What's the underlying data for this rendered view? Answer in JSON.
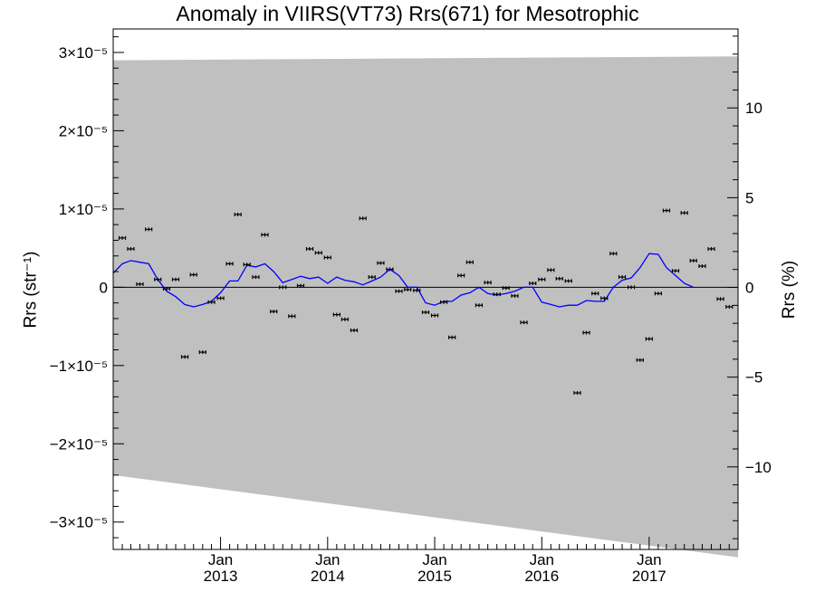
{
  "chart_data": {
    "type": "line",
    "title": "Anomaly in VIIRS(VT73) Rrs(671) for Mesotrophic",
    "ylabel": "Rrs (str⁻¹)",
    "ylabel_right": "Rrs (%)",
    "xlim": [
      "2012-01-01",
      "2017-10-31"
    ],
    "ylim": [
      -3.35e-05,
      3.3e-05
    ],
    "ylim_right": [
      -14.6,
      14.4
    ],
    "x_ticks": [
      {
        "date": "2013-01-01",
        "month": "Jan",
        "year": "2013"
      },
      {
        "date": "2014-01-01",
        "month": "Jan",
        "year": "2014"
      },
      {
        "date": "2015-01-01",
        "month": "Jan",
        "year": "2015"
      },
      {
        "date": "2016-01-01",
        "month": "Jan",
        "year": "2016"
      },
      {
        "date": "2017-01-01",
        "month": "Jan",
        "year": "2017"
      }
    ],
    "y_ticks_left": [
      {
        "value": 3e-05,
        "label": "3×10⁻⁵"
      },
      {
        "value": 2e-05,
        "label": "2×10⁻⁵"
      },
      {
        "value": 1e-05,
        "label": "1×10⁻⁵"
      },
      {
        "value": 0,
        "label": "0"
      },
      {
        "value": -1e-05,
        "label": "−1×10⁻⁵"
      },
      {
        "value": -2e-05,
        "label": "−2×10⁻⁵"
      },
      {
        "value": -3e-05,
        "label": "−3×10⁻⁵"
      }
    ],
    "y_ticks_right": [
      {
        "value": 10,
        "label": "10"
      },
      {
        "value": 5,
        "label": "5"
      },
      {
        "value": 0,
        "label": "0"
      },
      {
        "value": -5,
        "label": "−5"
      },
      {
        "value": -10,
        "label": "−10"
      }
    ],
    "band": {
      "start": {
        "x": "2012-01-01",
        "upper": 2.9e-05,
        "lower": -2.4e-05
      },
      "end": {
        "x": "2017-10-31",
        "upper": 2.95e-05,
        "lower": -3.45e-05
      },
      "color": "#c0c0c0"
    },
    "zero_line": true,
    "series": [
      {
        "type": "line",
        "color": "#0000ff",
        "points": [
          {
            "x": "2012-01-01",
            "y": 1.8e-06
          },
          {
            "x": "2012-02-01",
            "y": 3e-06
          },
          {
            "x": "2012-03-01",
            "y": 3.4e-06
          },
          {
            "x": "2012-04-01",
            "y": 3.2e-06
          },
          {
            "x": "2012-05-01",
            "y": 3e-06
          },
          {
            "x": "2012-06-01",
            "y": 1e-06
          },
          {
            "x": "2012-07-01",
            "y": -5e-07
          },
          {
            "x": "2012-08-01",
            "y": -1.2e-06
          },
          {
            "x": "2012-09-01",
            "y": -2.2e-06
          },
          {
            "x": "2012-10-01",
            "y": -2.5e-06
          },
          {
            "x": "2012-11-01",
            "y": -2.2e-06
          },
          {
            "x": "2012-12-01",
            "y": -1.8e-06
          },
          {
            "x": "2013-01-01",
            "y": -7e-07
          },
          {
            "x": "2013-02-01",
            "y": 8e-07
          },
          {
            "x": "2013-03-01",
            "y": 8e-07
          },
          {
            "x": "2013-04-01",
            "y": 2.8e-06
          },
          {
            "x": "2013-05-01",
            "y": 2.6e-06
          },
          {
            "x": "2013-06-01",
            "y": 3e-06
          },
          {
            "x": "2013-07-01",
            "y": 2e-06
          },
          {
            "x": "2013-08-01",
            "y": 6e-07
          },
          {
            "x": "2013-09-01",
            "y": 1e-06
          },
          {
            "x": "2013-10-01",
            "y": 1.4e-06
          },
          {
            "x": "2013-11-01",
            "y": 1.1e-06
          },
          {
            "x": "2013-12-01",
            "y": 1.3e-06
          },
          {
            "x": "2014-01-01",
            "y": 5e-07
          },
          {
            "x": "2014-02-01",
            "y": 1.3e-06
          },
          {
            "x": "2014-03-01",
            "y": 9e-07
          },
          {
            "x": "2014-04-01",
            "y": 7e-07
          },
          {
            "x": "2014-05-01",
            "y": 3e-07
          },
          {
            "x": "2014-06-01",
            "y": 8e-07
          },
          {
            "x": "2014-07-01",
            "y": 1.3e-06
          },
          {
            "x": "2014-08-01",
            "y": 2.3e-06
          },
          {
            "x": "2014-09-01",
            "y": 1.5e-06
          },
          {
            "x": "2014-10-01",
            "y": 0
          },
          {
            "x": "2014-11-01",
            "y": 0
          },
          {
            "x": "2014-12-01",
            "y": -2e-06
          },
          {
            "x": "2015-01-01",
            "y": -2.3e-06
          },
          {
            "x": "2015-02-01",
            "y": -1.8e-06
          },
          {
            "x": "2015-03-01",
            "y": -1.8e-06
          },
          {
            "x": "2015-04-01",
            "y": -1e-06
          },
          {
            "x": "2015-05-01",
            "y": -7e-07
          },
          {
            "x": "2015-06-01",
            "y": 0
          },
          {
            "x": "2015-07-01",
            "y": -8e-07
          },
          {
            "x": "2015-08-01",
            "y": -1e-06
          },
          {
            "x": "2015-09-01",
            "y": -8e-07
          },
          {
            "x": "2015-10-01",
            "y": -5e-07
          },
          {
            "x": "2015-11-01",
            "y": 0
          },
          {
            "x": "2015-12-01",
            "y": 0
          },
          {
            "x": "2016-01-01",
            "y": -1.9e-06
          },
          {
            "x": "2016-02-01",
            "y": -2.2e-06
          },
          {
            "x": "2016-03-01",
            "y": -2.5e-06
          },
          {
            "x": "2016-04-01",
            "y": -2.3e-06
          },
          {
            "x": "2016-05-01",
            "y": -2.3e-06
          },
          {
            "x": "2016-06-01",
            "y": -1.7e-06
          },
          {
            "x": "2016-07-01",
            "y": -1.8e-06
          },
          {
            "x": "2016-08-01",
            "y": -1.8e-06
          },
          {
            "x": "2016-09-01",
            "y": 0
          },
          {
            "x": "2016-10-01",
            "y": 9e-07
          },
          {
            "x": "2016-11-01",
            "y": 1.2e-06
          },
          {
            "x": "2016-12-01",
            "y": 2.5e-06
          },
          {
            "x": "2017-01-01",
            "y": 4.3e-06
          },
          {
            "x": "2017-02-01",
            "y": 4.2e-06
          },
          {
            "x": "2017-03-01",
            "y": 2.5e-06
          },
          {
            "x": "2017-04-01",
            "y": 1.5e-06
          },
          {
            "x": "2017-05-01",
            "y": 5e-07
          },
          {
            "x": "2017-06-01",
            "y": 0
          }
        ]
      },
      {
        "type": "scatter",
        "color": "#000000",
        "error_bars": true,
        "points": [
          {
            "x": "2012-02-01",
            "y": 6.3e-06
          },
          {
            "x": "2012-03-01",
            "y": 4.9e-06
          },
          {
            "x": "2012-04-01",
            "y": 4e-07
          },
          {
            "x": "2012-05-01",
            "y": 7.4e-06
          },
          {
            "x": "2012-06-01",
            "y": 1e-06
          },
          {
            "x": "2012-07-01",
            "y": -2e-07
          },
          {
            "x": "2012-08-01",
            "y": 1e-06
          },
          {
            "x": "2012-09-01",
            "y": -8.9e-06
          },
          {
            "x": "2012-10-01",
            "y": 1.6e-06
          },
          {
            "x": "2012-11-01",
            "y": -8.3e-06
          },
          {
            "x": "2012-12-01",
            "y": -1.9e-06
          },
          {
            "x": "2013-01-01",
            "y": -1.4e-06
          },
          {
            "x": "2013-02-01",
            "y": 3e-06
          },
          {
            "x": "2013-03-01",
            "y": 9.3e-06
          },
          {
            "x": "2013-04-01",
            "y": 2.9e-06
          },
          {
            "x": "2013-05-01",
            "y": 1.3e-06
          },
          {
            "x": "2013-06-01",
            "y": 6.7e-06
          },
          {
            "x": "2013-07-01",
            "y": -3.1e-06
          },
          {
            "x": "2013-08-01",
            "y": 0
          },
          {
            "x": "2013-09-01",
            "y": -3.7e-06
          },
          {
            "x": "2013-10-01",
            "y": 2e-07
          },
          {
            "x": "2013-11-01",
            "y": 4.9e-06
          },
          {
            "x": "2013-12-01",
            "y": 4.4e-06
          },
          {
            "x": "2014-01-01",
            "y": 3.8e-06
          },
          {
            "x": "2014-02-01",
            "y": -3.5e-06
          },
          {
            "x": "2014-03-01",
            "y": -4.1e-06
          },
          {
            "x": "2014-04-01",
            "y": -5.5e-06
          },
          {
            "x": "2014-05-01",
            "y": 8.8e-06
          },
          {
            "x": "2014-06-01",
            "y": 1.3e-06
          },
          {
            "x": "2014-07-01",
            "y": 3.1e-06
          },
          {
            "x": "2014-08-01",
            "y": 2.3e-06
          },
          {
            "x": "2014-09-01",
            "y": -5e-07
          },
          {
            "x": "2014-10-01",
            "y": -3e-07
          },
          {
            "x": "2014-11-01",
            "y": -4e-07
          },
          {
            "x": "2014-12-01",
            "y": -3.2e-06
          },
          {
            "x": "2015-01-01",
            "y": -3.6e-06
          },
          {
            "x": "2015-02-01",
            "y": -1.9e-06
          },
          {
            "x": "2015-03-01",
            "y": -6.4e-06
          },
          {
            "x": "2015-04-01",
            "y": 1.5e-06
          },
          {
            "x": "2015-05-01",
            "y": 3.2e-06
          },
          {
            "x": "2015-06-01",
            "y": -2.3e-06
          },
          {
            "x": "2015-07-01",
            "y": 6e-07
          },
          {
            "x": "2015-08-01",
            "y": -9e-07
          },
          {
            "x": "2015-09-01",
            "y": -1e-07
          },
          {
            "x": "2015-10-01",
            "y": -1.1e-06
          },
          {
            "x": "2015-11-01",
            "y": -4.5e-06
          },
          {
            "x": "2015-12-01",
            "y": 5e-07
          },
          {
            "x": "2016-01-01",
            "y": 1e-06
          },
          {
            "x": "2016-02-01",
            "y": 2.2e-06
          },
          {
            "x": "2016-03-01",
            "y": 1.1e-06
          },
          {
            "x": "2016-04-01",
            "y": 8e-07
          },
          {
            "x": "2016-05-01",
            "y": -1.35e-05
          },
          {
            "x": "2016-06-01",
            "y": -5.8e-06
          },
          {
            "x": "2016-07-01",
            "y": -8e-07
          },
          {
            "x": "2016-08-01",
            "y": -1.4e-06
          },
          {
            "x": "2016-09-01",
            "y": 4.3e-06
          },
          {
            "x": "2016-10-01",
            "y": 1.3e-06
          },
          {
            "x": "2016-11-01",
            "y": 0
          },
          {
            "x": "2016-12-01",
            "y": -9.3e-06
          },
          {
            "x": "2017-01-01",
            "y": -6.6e-06
          },
          {
            "x": "2017-02-01",
            "y": -8e-07
          },
          {
            "x": "2017-03-01",
            "y": 9.8e-06
          },
          {
            "x": "2017-04-01",
            "y": 2.1e-06
          },
          {
            "x": "2017-05-01",
            "y": 9.5e-06
          },
          {
            "x": "2017-06-01",
            "y": 3.4e-06
          },
          {
            "x": "2017-07-01",
            "y": 2.7e-06
          },
          {
            "x": "2017-08-01",
            "y": 4.9e-06
          },
          {
            "x": "2017-09-01",
            "y": -1.5e-06
          },
          {
            "x": "2017-10-01",
            "y": -2.5e-06
          }
        ]
      }
    ]
  }
}
